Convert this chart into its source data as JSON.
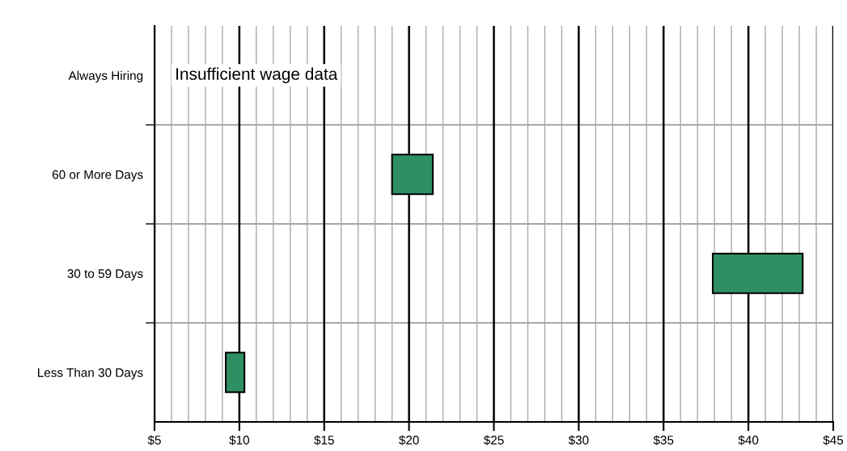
{
  "chart_data": {
    "type": "bar",
    "orientation": "horizontal",
    "categories": [
      "Always Hiring",
      "60 or More Days",
      "30 to 59 Days",
      "Less Than 30 Days"
    ],
    "base": [
      null,
      19.0,
      37.9,
      9.2
    ],
    "values": [
      null,
      2.4,
      5.3,
      1.1
    ],
    "color": "#2f8f62",
    "xlim": [
      5,
      45
    ],
    "xticks": [
      {
        "value": 5,
        "label": "$5"
      },
      {
        "value": 10,
        "label": "$10"
      },
      {
        "value": 15,
        "label": "$15"
      },
      {
        "value": 20,
        "label": "$20"
      },
      {
        "value": 25,
        "label": "$25"
      },
      {
        "value": 30,
        "label": "$30"
      },
      {
        "value": 35,
        "label": "$35"
      },
      {
        "value": 40,
        "label": "$40"
      },
      {
        "value": 45,
        "label": "$45"
      }
    ],
    "grid": true,
    "annotations": [
      "Insufficient wage data"
    ]
  }
}
